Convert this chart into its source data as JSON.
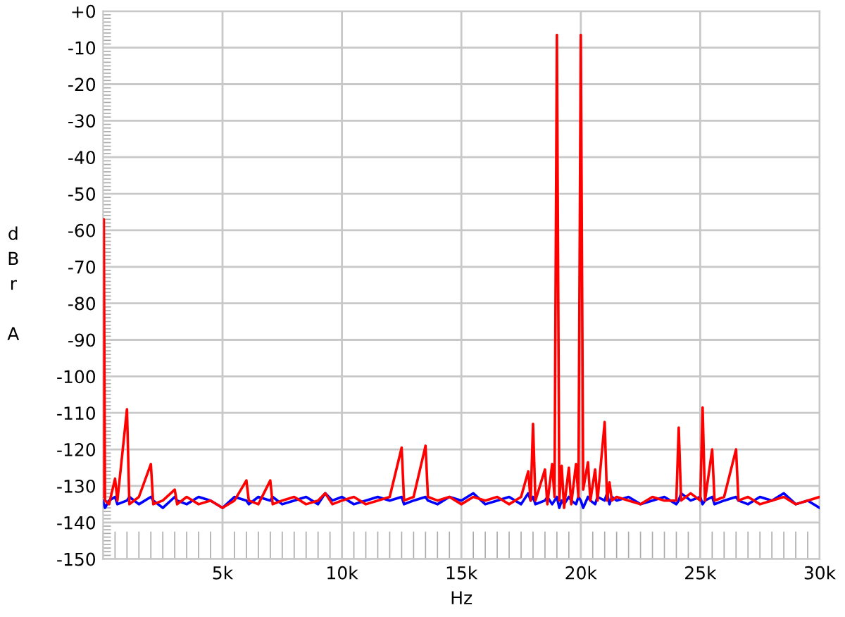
{
  "chart_data": {
    "type": "line",
    "xlabel": "Hz",
    "ylabel": "dBr A",
    "x": [
      0,
      30,
      80,
      250,
      500,
      600,
      1000,
      1100,
      1500,
      2000,
      2100,
      2500,
      3000,
      3100,
      3500,
      4000,
      4500,
      5000,
      5500,
      6000,
      6100,
      6500,
      7000,
      7100,
      7500,
      8000,
      8500,
      9000,
      9300,
      9600,
      10000,
      10500,
      11000,
      11500,
      12000,
      12500,
      12600,
      13000,
      13500,
      13600,
      14000,
      14500,
      15000,
      15500,
      16000,
      16500,
      17000,
      17500,
      17800,
      17900,
      18000,
      18100,
      18500,
      18600,
      18800,
      18900,
      19000,
      19100,
      19200,
      19300,
      19500,
      19600,
      19800,
      19900,
      20000,
      20100,
      20300,
      20400,
      20600,
      20700,
      21000,
      21100,
      21200,
      21300,
      21500,
      22000,
      22500,
      23000,
      23500,
      24000,
      24100,
      24200,
      24600,
      25000,
      25100,
      25200,
      25500,
      25600,
      26000,
      26500,
      26600,
      27000,
      27500,
      28000,
      28500,
      29000,
      29500,
      30000
    ],
    "series": [
      {
        "color": "#0000ff",
        "values": [
          -134,
          -135,
          -136,
          -134,
          -133,
          -135,
          -134,
          -133,
          -135,
          -133,
          -134,
          -136,
          -133,
          -134,
          -135,
          -133,
          -134,
          -136,
          -133,
          -134,
          -135,
          -133,
          -134,
          -133,
          -135,
          -134,
          -133,
          -135,
          -132,
          -134,
          -133,
          -135,
          -134,
          -133,
          -134,
          -133,
          -135,
          -134,
          -133,
          -134,
          -135,
          -133,
          -134,
          -132,
          -135,
          -134,
          -133,
          -135,
          -132,
          -134,
          -133,
          -135,
          -134,
          -133,
          -135,
          -134,
          -133,
          -136,
          -134,
          -135,
          -133,
          -134,
          -135,
          -133,
          -134,
          -136,
          -133,
          -134,
          -135,
          -133,
          -134,
          -132,
          -135,
          -133,
          -134,
          -133,
          -135,
          -134,
          -133,
          -135,
          -134,
          -132,
          -134,
          -133,
          -135,
          -134,
          -133,
          -135,
          -134,
          -133,
          -134,
          -135,
          -133,
          -134,
          -132,
          -135,
          -134,
          -136
        ]
      },
      {
        "color": "#ff0000",
        "values": [
          -133,
          -57,
          -134,
          -135,
          -128,
          -134,
          -109,
          -135,
          -133,
          -124,
          -135,
          -134,
          -131,
          -135,
          -133,
          -135,
          -134,
          -136,
          -134,
          -128.5,
          -134,
          -135,
          -128.5,
          -135,
          -134,
          -133,
          -135,
          -134,
          -132,
          -135,
          -134,
          -133,
          -135,
          -134,
          -133,
          -119.5,
          -134,
          -133,
          -119,
          -133,
          -134,
          -133,
          -135,
          -133,
          -134,
          -133,
          -135,
          -133,
          -126,
          -134,
          -113,
          -134,
          -125.5,
          -135,
          -124,
          -133,
          -6.5,
          -134,
          -124.5,
          -136,
          -125,
          -135,
          -124,
          -133,
          -6.5,
          -131,
          -123.5,
          -134,
          -125.5,
          -134,
          -112.5,
          -134,
          -129,
          -134,
          -133,
          -134,
          -135,
          -133,
          -134,
          -134,
          -114,
          -134,
          -132,
          -134,
          -108.5,
          -134,
          -120,
          -134,
          -133,
          -120,
          -134,
          -133,
          -135,
          -134,
          -133,
          -135,
          -134,
          -133
        ]
      }
    ],
    "xlim": [
      0,
      30000
    ],
    "xticks": [
      {
        "value": 5000,
        "label": "5k"
      },
      {
        "value": 10000,
        "label": "10k"
      },
      {
        "value": 15000,
        "label": "15k"
      },
      {
        "value": 20000,
        "label": "20k"
      },
      {
        "value": 25000,
        "label": "25k"
      },
      {
        "value": 30000,
        "label": "30k"
      }
    ],
    "ylim": [
      -150,
      0
    ],
    "yticks": [
      -150,
      -140,
      -130,
      -120,
      -110,
      -100,
      -90,
      -80,
      -70,
      -60,
      -50,
      -40,
      -30,
      -20,
      -10,
      {
        "value": 0,
        "label": "+0"
      }
    ],
    "grid": true,
    "marker": "none",
    "line_style": "solid"
  }
}
